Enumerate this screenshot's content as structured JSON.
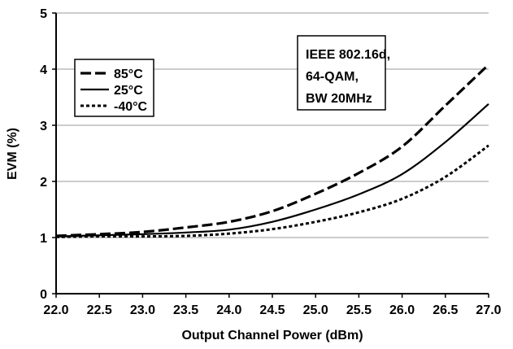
{
  "chart_data": {
    "type": "line",
    "title": "",
    "xlabel": "Output Channel Power (dBm)",
    "ylabel": "EVM (%)",
    "xlim": [
      22.0,
      27.0
    ],
    "ylim": [
      0,
      5
    ],
    "x_ticks": [
      "22.0",
      "22.5",
      "23.0",
      "23.5",
      "24.0",
      "24.5",
      "25.0",
      "25.5",
      "26.0",
      "26.5",
      "27.0"
    ],
    "y_ticks": [
      "0",
      "1",
      "2",
      "3",
      "4",
      "5"
    ],
    "grid": "horizontal",
    "legend_position": "top-left",
    "annotation": [
      "IEEE 802.16d,",
      "64-QAM,",
      "BW 20MHz"
    ],
    "series": [
      {
        "name": "85°C",
        "style": "dashed",
        "x": [
          22.0,
          22.5,
          23.0,
          23.5,
          24.0,
          24.5,
          25.0,
          25.5,
          26.0,
          26.5,
          27.0
        ],
        "values": [
          1.03,
          1.06,
          1.1,
          1.18,
          1.28,
          1.47,
          1.78,
          2.15,
          2.62,
          3.35,
          4.08
        ]
      },
      {
        "name": "25°C",
        "style": "solid",
        "x": [
          22.0,
          22.5,
          23.0,
          23.5,
          24.0,
          24.5,
          25.0,
          25.5,
          26.0,
          26.5,
          27.0
        ],
        "values": [
          1.02,
          1.04,
          1.06,
          1.09,
          1.14,
          1.28,
          1.5,
          1.77,
          2.13,
          2.7,
          3.38
        ]
      },
      {
        "name": "-40°C",
        "style": "dotted",
        "x": [
          22.0,
          22.5,
          23.0,
          23.5,
          24.0,
          24.5,
          25.0,
          25.5,
          26.0,
          26.5,
          27.0
        ],
        "values": [
          1.01,
          1.02,
          1.02,
          1.03,
          1.07,
          1.15,
          1.28,
          1.45,
          1.69,
          2.08,
          2.64
        ]
      }
    ]
  }
}
